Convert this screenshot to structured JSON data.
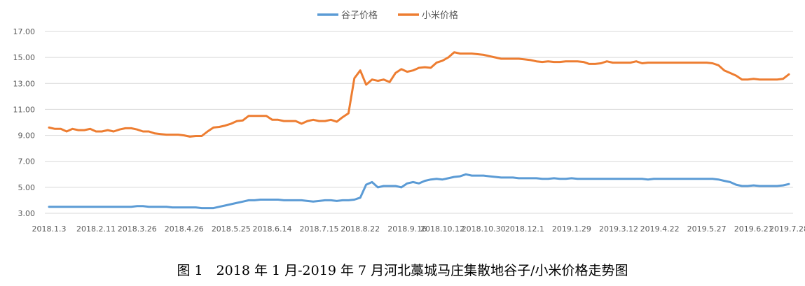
{
  "caption": "图 1　2018 年 1 月-2019 年 7 月河北藁城马庄集散地谷子/小米价格走势图",
  "chart_data": {
    "type": "line",
    "title": "",
    "xlabel": "",
    "ylabel": "",
    "ylim": [
      3,
      17
    ],
    "yticks": [
      "3.00",
      "5.00",
      "7.00",
      "9.00",
      "11.00",
      "13.00",
      "15.00",
      "17.00"
    ],
    "grid": "horizontal",
    "legend_position": "top-center",
    "x_tick_labels": [
      "2018.1.3",
      "2018.2.11",
      "2018.3.26",
      "2018.4.26",
      "2018.5.25",
      "2018.6.14",
      "2018.7.15",
      "2018.8.22",
      "2018.9.16",
      "2018.10.12",
      "2018.10.30",
      "2018.12.1",
      "2019.1.29",
      "2019.3.12",
      "2019.4.22",
      "2019.5.27",
      "2019.6.21",
      "2019.7.28"
    ],
    "x_tick_positions": [
      0,
      6,
      12,
      18,
      24,
      30,
      36,
      42,
      48,
      53,
      58,
      64,
      70,
      76,
      82,
      88,
      94,
      99
    ],
    "series": [
      {
        "name": "谷子价格",
        "color": "#5B9BD5",
        "values": [
          3.5,
          3.5,
          3.5,
          3.5,
          3.5,
          3.5,
          3.5,
          3.5,
          3.5,
          3.5,
          3.5,
          3.5,
          3.5,
          3.5,
          3.5,
          3.55,
          3.55,
          3.5,
          3.5,
          3.5,
          3.5,
          3.45,
          3.45,
          3.45,
          3.45,
          3.45,
          3.4,
          3.4,
          3.4,
          3.5,
          3.6,
          3.7,
          3.8,
          3.9,
          4.0,
          4.0,
          4.05,
          4.05,
          4.05,
          4.05,
          4.0,
          4.0,
          4.0,
          4.0,
          3.95,
          3.9,
          3.95,
          4.0,
          4.0,
          3.95,
          4.0,
          4.0,
          4.05,
          4.2,
          5.2,
          5.4,
          5.0,
          5.1,
          5.1,
          5.1,
          5.0,
          5.3,
          5.4,
          5.3,
          5.5,
          5.6,
          5.65,
          5.6,
          5.7,
          5.8,
          5.85,
          6.0,
          5.9,
          5.9,
          5.9,
          5.85,
          5.8,
          5.75,
          5.75,
          5.75,
          5.7,
          5.7,
          5.7,
          5.7,
          5.65,
          5.65,
          5.7,
          5.65,
          5.65,
          5.7,
          5.65,
          5.65,
          5.65,
          5.65,
          5.65,
          5.65,
          5.65,
          5.65,
          5.65,
          5.65,
          5.65,
          5.65,
          5.6,
          5.65,
          5.65,
          5.65,
          5.65,
          5.65,
          5.65,
          5.65,
          5.65,
          5.65,
          5.65,
          5.65,
          5.6,
          5.5,
          5.4,
          5.2,
          5.1,
          5.1,
          5.15,
          5.1,
          5.1,
          5.1,
          5.1,
          5.15,
          5.25
        ]
      },
      {
        "name": "小米价格",
        "color": "#ED7D31",
        "values": [
          9.6,
          9.5,
          9.5,
          9.3,
          9.5,
          9.4,
          9.4,
          9.5,
          9.3,
          9.3,
          9.4,
          9.3,
          9.45,
          9.55,
          9.55,
          9.45,
          9.3,
          9.3,
          9.15,
          9.1,
          9.05,
          9.05,
          9.05,
          9.0,
          8.9,
          8.95,
          8.95,
          9.3,
          9.6,
          9.65,
          9.75,
          9.9,
          10.1,
          10.15,
          10.5,
          10.5,
          10.5,
          10.5,
          10.2,
          10.2,
          10.1,
          10.1,
          10.1,
          9.9,
          10.1,
          10.2,
          10.1,
          10.1,
          10.2,
          10.05,
          10.4,
          10.7,
          13.4,
          14.0,
          12.9,
          13.3,
          13.2,
          13.3,
          13.1,
          13.8,
          14.1,
          13.9,
          14.0,
          14.2,
          14.25,
          14.2,
          14.6,
          14.75,
          15.0,
          15.4,
          15.3,
          15.3,
          15.3,
          15.25,
          15.2,
          15.1,
          15.0,
          14.9,
          14.9,
          14.9,
          14.9,
          14.85,
          14.8,
          14.7,
          14.65,
          14.7,
          14.65,
          14.65,
          14.7,
          14.7,
          14.7,
          14.65,
          14.5,
          14.5,
          14.55,
          14.7,
          14.6,
          14.6,
          14.6,
          14.6,
          14.7,
          14.55,
          14.6,
          14.6,
          14.6,
          14.6,
          14.6,
          14.6,
          14.6,
          14.6,
          14.6,
          14.6,
          14.6,
          14.55,
          14.4,
          14.0,
          13.8,
          13.6,
          13.3,
          13.3,
          13.35,
          13.3,
          13.3,
          13.3,
          13.3,
          13.35,
          13.7
        ]
      }
    ]
  }
}
